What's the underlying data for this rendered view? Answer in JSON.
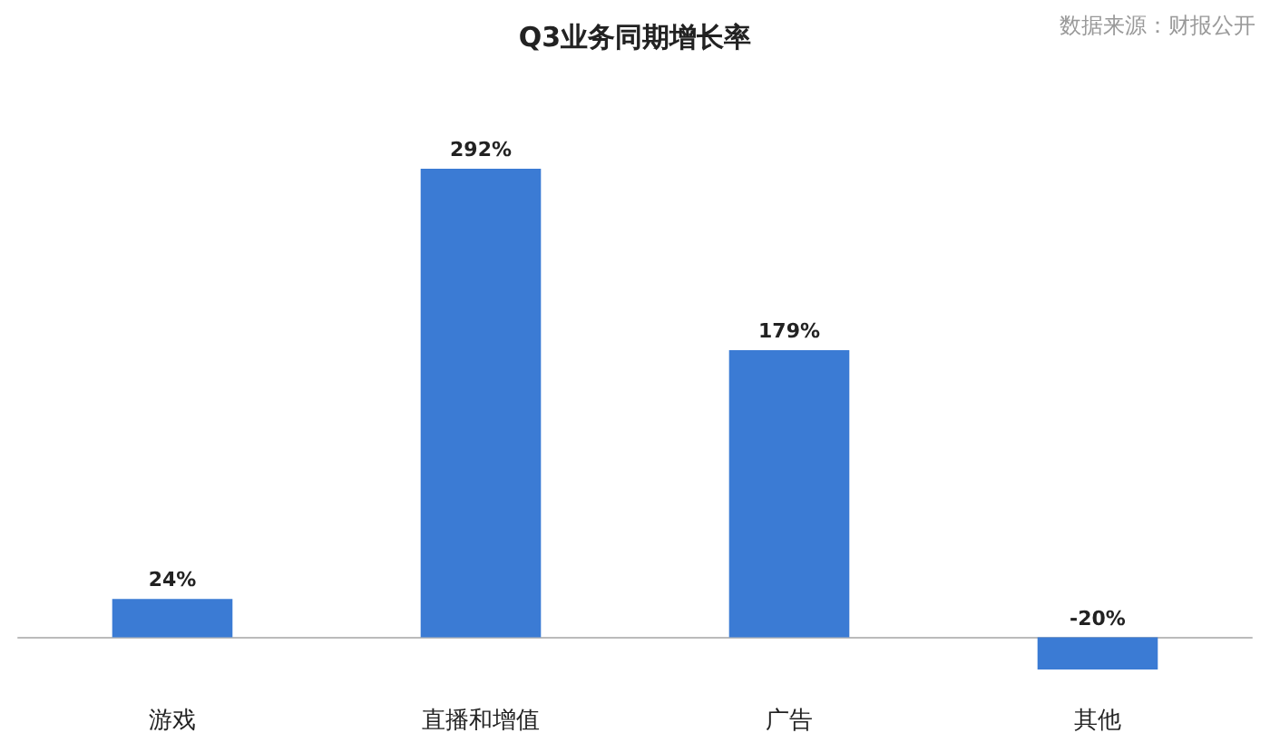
{
  "chart_data": {
    "type": "bar",
    "title": "Q3业务同期增长率",
    "annotations": [
      "数据来源：财报公开"
    ],
    "categories": [
      "游戏",
      "直播和增值",
      "广告",
      "其他"
    ],
    "values": [
      24,
      292,
      179,
      -20
    ],
    "value_labels": [
      "24%",
      "292%",
      "179%",
      "-20%"
    ],
    "color": "#3b7bd4"
  }
}
